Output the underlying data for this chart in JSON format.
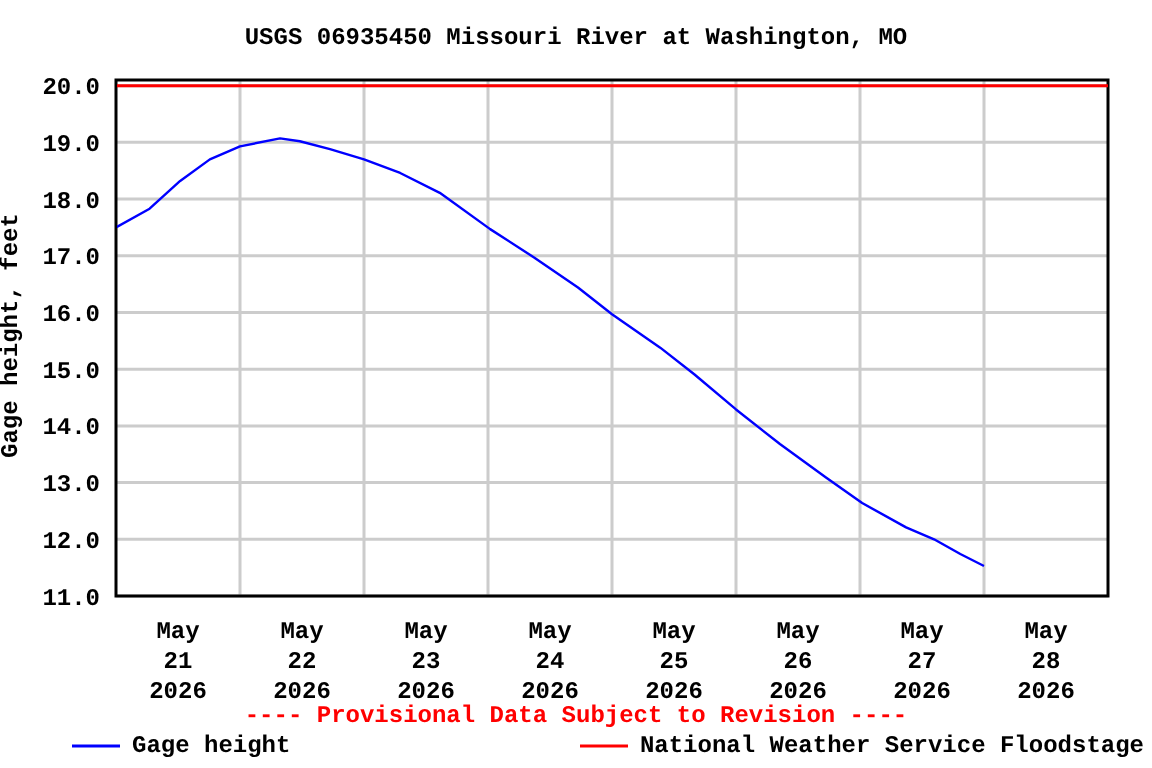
{
  "chart_data": {
    "type": "line",
    "title": "USGS 06935450 Missouri River at Washington, MO",
    "ylabel": "Gage height, feet",
    "annotations": [
      "---- Provisional Data Subject to Revision ----"
    ],
    "x": [
      "2026-05-21T00:00",
      "2026-05-21T06:30",
      "2026-05-21T12:25",
      "2026-05-21T18:10",
      "2026-05-22T00:00",
      "2026-05-22T07:45",
      "2026-05-22T11:35",
      "2026-05-22T17:25",
      "2026-05-23T00:00",
      "2026-05-23T07:00",
      "2026-05-23T14:40",
      "2026-05-24T00:25",
      "2026-05-24T08:55",
      "2026-05-24T17:25",
      "2026-05-25T00:00",
      "2026-05-25T09:20",
      "2026-05-25T15:55",
      "2026-05-26T00:00",
      "2026-05-26T08:30",
      "2026-05-26T17:25",
      "2026-05-27T00:25",
      "2026-05-27T08:55",
      "2026-05-27T14:20",
      "2026-05-27T19:25",
      "2026-05-28T00:00"
    ],
    "series": [
      {
        "name": "Gage height",
        "color": "#0000ff",
        "values": [
          17.5,
          17.83,
          18.32,
          18.7,
          18.93,
          19.07,
          19.02,
          18.88,
          18.7,
          18.46,
          18.11,
          17.47,
          16.97,
          16.44,
          15.97,
          15.38,
          14.91,
          14.29,
          13.68,
          13.09,
          12.64,
          12.21,
          12.0,
          11.74,
          11.53
        ]
      }
    ],
    "xlim": [
      "2026-05-21T00:00",
      "2026-05-29T00:00"
    ],
    "xticks": [
      {
        "value": "2026-05-21T12:00",
        "label": "May 21 2026"
      },
      {
        "value": "2026-05-22T00:00",
        "label": null
      },
      {
        "value": "2026-05-22T12:00",
        "label": "May 22 2026"
      },
      {
        "value": "2026-05-23T00:00",
        "label": null
      },
      {
        "value": "2026-05-23T12:00",
        "label": "May 23 2026"
      },
      {
        "value": "2026-05-24T00:00",
        "label": null
      },
      {
        "value": "2026-05-24T12:00",
        "label": "May 24 2026"
      },
      {
        "value": "2026-05-25T00:00",
        "label": null
      },
      {
        "value": "2026-05-25T12:00",
        "label": "May 25 2026"
      },
      {
        "value": "2026-05-26T00:00",
        "label": null
      },
      {
        "value": "2026-05-26T12:00",
        "label": "May 26 2026"
      },
      {
        "value": "2026-05-27T00:00",
        "label": null
      },
      {
        "value": "2026-05-27T12:00",
        "label": "May 27 2026"
      },
      {
        "value": "2026-05-28T00:00",
        "label": null
      },
      {
        "value": "2026-05-28T12:00",
        "label": "May 28 2026"
      }
    ],
    "ylim": [
      11,
      20.1
    ],
    "yticks": [
      {
        "value": 11,
        "label": "11.0"
      },
      {
        "value": 12,
        "label": "12.0"
      },
      {
        "value": 13,
        "label": "13.0"
      },
      {
        "value": 14,
        "label": "14.0"
      },
      {
        "value": 15,
        "label": "15.0"
      },
      {
        "value": 16,
        "label": "16.0"
      },
      {
        "value": 17,
        "label": "17.0"
      },
      {
        "value": 18,
        "label": "18.0"
      },
      {
        "value": 19,
        "label": "19.0"
      },
      {
        "value": 20,
        "label": "20.0"
      }
    ],
    "ref_lines": [
      {
        "axis": "y",
        "value": 20,
        "label": "National Weather Service Floodstage",
        "color": "#ff0000"
      }
    ],
    "grid": true,
    "legend": "bottom",
    "marker": "none",
    "line_style": "solid"
  }
}
